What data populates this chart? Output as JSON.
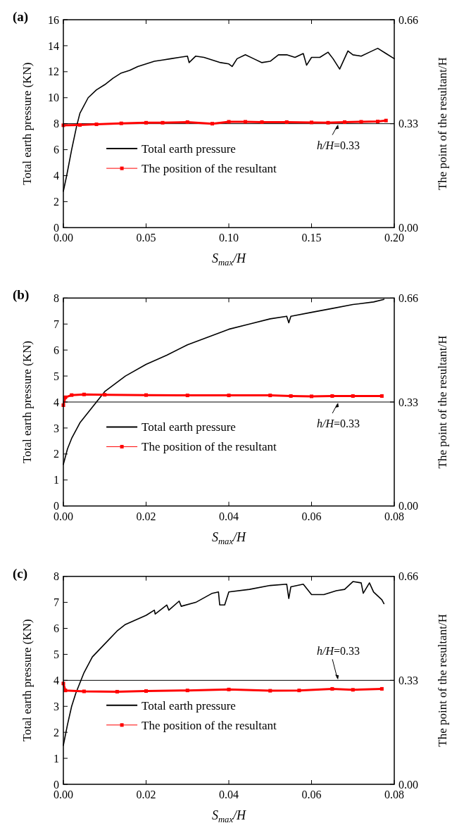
{
  "chart_data": [
    {
      "type": "line",
      "title": "(a)",
      "xlabel": "S$_{max}$/H",
      "ylabel": "Total earth pressure (KN)",
      "y2label": "The point of the resultant/H",
      "xlim": [
        0,
        0.2
      ],
      "xticks": [
        {
          "value": 0,
          "label": "0.00"
        },
        {
          "value": 0.05,
          "label": "0.05"
        },
        {
          "value": 0.1,
          "label": "0.10"
        },
        {
          "value": 0.15,
          "label": "0.15"
        },
        {
          "value": 0.2,
          "label": "0.20"
        }
      ],
      "ylim": [
        0,
        16
      ],
      "yticks": [
        0,
        2,
        4,
        6,
        8,
        10,
        12,
        14,
        16
      ],
      "y2lim": [
        0,
        0.66
      ],
      "y2ticks": [
        {
          "value": 0,
          "label": "0.00"
        },
        {
          "value": 0.33,
          "label": "0.33"
        },
        {
          "value": 0.66,
          "label": "0.66"
        }
      ],
      "legend": "bottom left",
      "grid": false,
      "ref_lines": [
        {
          "axis": "y2",
          "value": 0.33,
          "label": "h/H=0.33",
          "color": "#000000"
        }
      ],
      "series": [
        {
          "name": "Total earth pressure",
          "color": "#000000",
          "marker": "none",
          "x": [
            0,
            0.002,
            0.005,
            0.008,
            0.01,
            0.015,
            0.02,
            0.025,
            0.03,
            0.035,
            0.04,
            0.045,
            0.05,
            0.055,
            0.06,
            0.065,
            0.07,
            0.075,
            0.076,
            0.08,
            0.085,
            0.09,
            0.095,
            0.1,
            0.102,
            0.105,
            0.11,
            0.115,
            0.12,
            0.125,
            0.13,
            0.135,
            0.14,
            0.145,
            0.147,
            0.15,
            0.155,
            0.16,
            0.163,
            0.167,
            0.172,
            0.175,
            0.18,
            0.185,
            0.19,
            0.195,
            0.2
          ],
          "values": [
            2.8,
            4,
            6,
            7.8,
            8.8,
            10,
            10.6,
            11,
            11.5,
            11.9,
            12.1,
            12.4,
            12.6,
            12.8,
            12.9,
            13,
            13.1,
            13.2,
            12.7,
            13.2,
            13.1,
            12.9,
            12.7,
            12.6,
            12.4,
            13,
            13.3,
            13,
            12.7,
            12.8,
            13.3,
            13.3,
            13.1,
            13.4,
            12.5,
            13.1,
            13.1,
            13.5,
            13,
            12.2,
            13.6,
            13.3,
            13.2,
            13.5,
            13.8,
            13.4,
            13
          ]
        },
        {
          "name": "The position of the resultant",
          "color": "#ff0000",
          "marker": "square",
          "axis": "y2",
          "x": [
            0,
            0.01,
            0.02,
            0.035,
            0.05,
            0.06,
            0.075,
            0.09,
            0.1,
            0.11,
            0.12,
            0.135,
            0.15,
            0.16,
            0.17,
            0.18,
            0.19,
            0.195
          ],
          "values": [
            0.325,
            0.326,
            0.328,
            0.331,
            0.333,
            0.333,
            0.335,
            0.33,
            0.336,
            0.336,
            0.335,
            0.335,
            0.334,
            0.333,
            0.335,
            0.336,
            0.337,
            0.34
          ]
        }
      ]
    },
    {
      "type": "line",
      "title": "(b)",
      "xlabel": "S$_{max}$/H",
      "ylabel": "Total earth pressure (KN)",
      "y2label": "The point of the resultant/H",
      "xlim": [
        0,
        0.08
      ],
      "xticks": [
        {
          "value": 0,
          "label": "0.00"
        },
        {
          "value": 0.02,
          "label": "0.02"
        },
        {
          "value": 0.04,
          "label": "0.04"
        },
        {
          "value": 0.06,
          "label": "0.06"
        },
        {
          "value": 0.08,
          "label": "0.08"
        }
      ],
      "ylim": [
        0,
        8
      ],
      "yticks": [
        0,
        1,
        2,
        3,
        4,
        5,
        6,
        7,
        8
      ],
      "y2lim": [
        0,
        0.66
      ],
      "y2ticks": [
        {
          "value": 0,
          "label": "0.00"
        },
        {
          "value": 0.33,
          "label": "0.33"
        },
        {
          "value": 0.66,
          "label": "0.66"
        }
      ],
      "legend": "bottom left",
      "grid": false,
      "ref_lines": [
        {
          "axis": "y2",
          "value": 0.33,
          "label": "h/H=0.33",
          "color": "#000000"
        }
      ],
      "series": [
        {
          "name": "Total earth pressure",
          "color": "#000000",
          "marker": "none",
          "x": [
            0,
            0.001,
            0.002,
            0.004,
            0.006,
            0.008,
            0.01,
            0.015,
            0.02,
            0.025,
            0.03,
            0.035,
            0.04,
            0.045,
            0.05,
            0.054,
            0.0545,
            0.055,
            0.06,
            0.065,
            0.07,
            0.075,
            0.0775
          ],
          "values": [
            1.6,
            2.2,
            2.6,
            3.2,
            3.6,
            4,
            4.4,
            5,
            5.45,
            5.8,
            6.2,
            6.5,
            6.8,
            7,
            7.2,
            7.3,
            7.05,
            7.3,
            7.45,
            7.6,
            7.75,
            7.85,
            7.95
          ]
        },
        {
          "name": "The position of the resultant",
          "color": "#ff0000",
          "marker": "square",
          "axis": "y2",
          "x": [
            0,
            0.0005,
            0.002,
            0.005,
            0.01,
            0.02,
            0.03,
            0.04,
            0.05,
            0.055,
            0.06,
            0.065,
            0.07,
            0.077
          ],
          "values": [
            0.32,
            0.345,
            0.352,
            0.354,
            0.353,
            0.352,
            0.351,
            0.351,
            0.351,
            0.349,
            0.348,
            0.349,
            0.349,
            0.349
          ]
        }
      ]
    },
    {
      "type": "line",
      "title": "(c)",
      "xlabel": "S$_{max}$/H",
      "ylabel": "Total earth pressure (KN)",
      "y2label": "The point of the resultant/H",
      "xlim": [
        0,
        0.08
      ],
      "xticks": [
        {
          "value": 0,
          "label": "0.00"
        },
        {
          "value": 0.02,
          "label": "0.02"
        },
        {
          "value": 0.04,
          "label": "0.04"
        },
        {
          "value": 0.06,
          "label": "0.06"
        },
        {
          "value": 0.08,
          "label": "0.08"
        }
      ],
      "ylim": [
        0,
        8
      ],
      "yticks": [
        0,
        1,
        2,
        3,
        4,
        5,
        6,
        7,
        8
      ],
      "y2lim": [
        0,
        0.66
      ],
      "y2ticks": [
        {
          "value": 0,
          "label": "0.00"
        },
        {
          "value": 0.33,
          "label": "0.33"
        },
        {
          "value": 0.66,
          "label": "0.66"
        }
      ],
      "legend": "bottom left",
      "grid": false,
      "ref_lines": [
        {
          "axis": "y2",
          "value": 0.33,
          "label": "h/H=0.33",
          "color": "#000000"
        }
      ],
      "series": [
        {
          "name": "Total earth pressure",
          "color": "#000000",
          "marker": "none",
          "x": [
            0,
            0.001,
            0.002,
            0.003,
            0.005,
            0.007,
            0.01,
            0.013,
            0.015,
            0.02,
            0.022,
            0.0222,
            0.025,
            0.0255,
            0.028,
            0.0285,
            0.032,
            0.036,
            0.0375,
            0.0378,
            0.039,
            0.04,
            0.045,
            0.05,
            0.054,
            0.0545,
            0.055,
            0.058,
            0.06,
            0.063,
            0.066,
            0.068,
            0.07,
            0.072,
            0.0725,
            0.074,
            0.075,
            0.077,
            0.0775
          ],
          "values": [
            1.5,
            2.3,
            3,
            3.5,
            4.3,
            4.9,
            5.4,
            5.9,
            6.15,
            6.5,
            6.7,
            6.55,
            6.9,
            6.7,
            7.05,
            6.85,
            7,
            7.35,
            7.4,
            6.9,
            6.9,
            7.4,
            7.5,
            7.65,
            7.7,
            7.15,
            7.6,
            7.7,
            7.3,
            7.3,
            7.45,
            7.5,
            7.8,
            7.75,
            7.35,
            7.75,
            7.4,
            7.1,
            6.95
          ]
        },
        {
          "name": "The position of the resultant",
          "color": "#ff0000",
          "marker": "square",
          "axis": "y2",
          "x": [
            0,
            0.0005,
            0.005,
            0.013,
            0.02,
            0.03,
            0.04,
            0.05,
            0.057,
            0.065,
            0.07,
            0.077
          ],
          "values": [
            0.32,
            0.298,
            0.295,
            0.294,
            0.296,
            0.298,
            0.301,
            0.297,
            0.298,
            0.303,
            0.3,
            0.303
          ]
        }
      ]
    }
  ]
}
